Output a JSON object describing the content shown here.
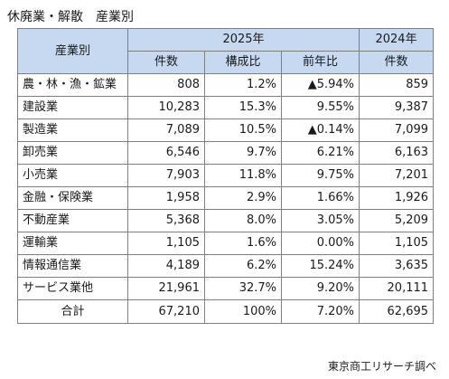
{
  "title": "休廃業・解散　産業別",
  "header": {
    "industry": "産業別",
    "year_2025": "2025年",
    "year_2024": "2024年",
    "count": "件数",
    "share": "構成比",
    "yoy": "前年比",
    "count_2024": "件数"
  },
  "rows": [
    {
      "industry": "農・林・漁・鉱業",
      "count_2025": "808",
      "share": "1.2%",
      "yoy": "▲5.94%",
      "count_2024": "859"
    },
    {
      "industry": "建設業",
      "count_2025": "10,283",
      "share": "15.3%",
      "yoy": "9.55%",
      "count_2024": "9,387"
    },
    {
      "industry": "製造業",
      "count_2025": "7,089",
      "share": "10.5%",
      "yoy": "▲0.14%",
      "count_2024": "7,099"
    },
    {
      "industry": "卸売業",
      "count_2025": "6,546",
      "share": "9.7%",
      "yoy": "6.21%",
      "count_2024": "6,163"
    },
    {
      "industry": "小売業",
      "count_2025": "7,903",
      "share": "11.8%",
      "yoy": "9.75%",
      "count_2024": "7,201"
    },
    {
      "industry": "金融・保険業",
      "count_2025": "1,958",
      "share": "2.9%",
      "yoy": "1.66%",
      "count_2024": "1,926"
    },
    {
      "industry": "不動産業",
      "count_2025": "5,368",
      "share": "8.0%",
      "yoy": "3.05%",
      "count_2024": "5,209"
    },
    {
      "industry": "運輸業",
      "count_2025": "1,105",
      "share": "1.6%",
      "yoy": "0.00%",
      "count_2024": "1,105"
    },
    {
      "industry": "情報通信業",
      "count_2025": "4,189",
      "share": "6.2%",
      "yoy": "15.24%",
      "count_2024": "3,635"
    },
    {
      "industry": "サービス業他",
      "count_2025": "21,961",
      "share": "32.7%",
      "yoy": "9.20%",
      "count_2024": "20,111"
    }
  ],
  "total": {
    "label": "合計",
    "count_2025": "67,210",
    "share": "100%",
    "yoy": "7.20%",
    "count_2024": "62,695"
  },
  "source": "東京商工リサーチ調べ",
  "colors": {
    "header_bg": "#c6d9f1",
    "border": "#7f7f7f"
  }
}
